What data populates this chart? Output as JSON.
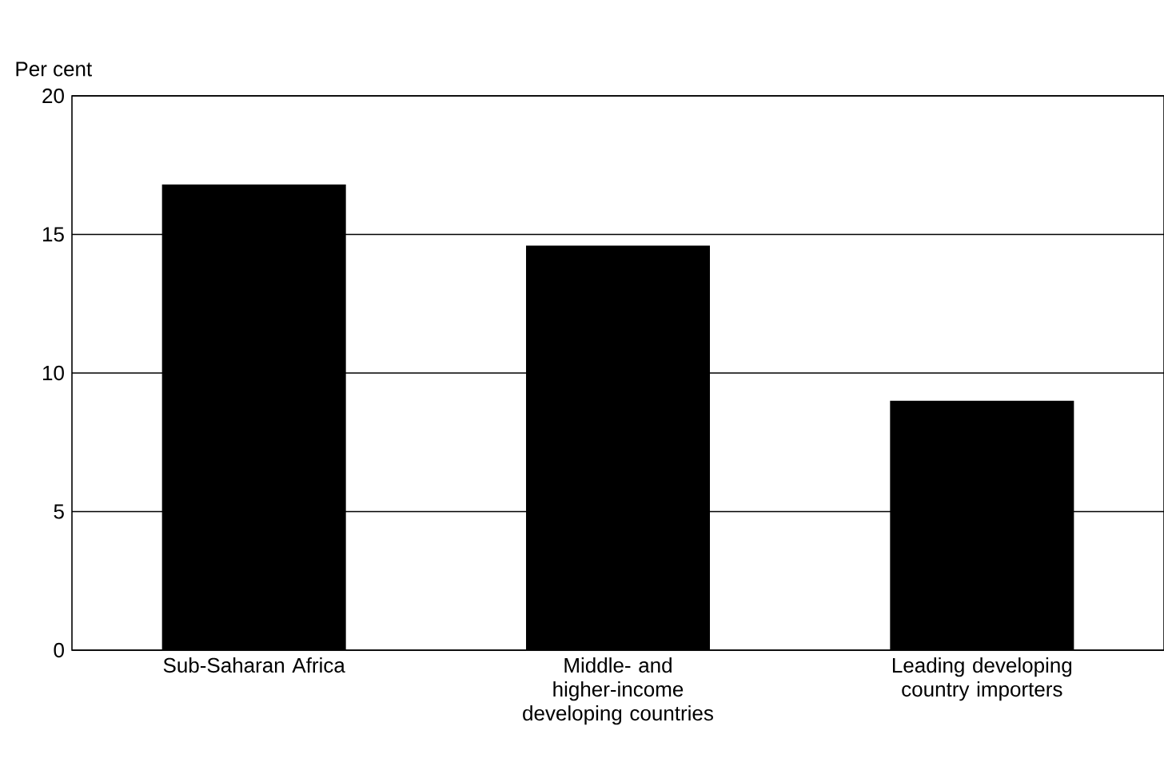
{
  "chart_data": {
    "type": "bar",
    "ylabel": "Per cent",
    "categories": [
      "Sub-Saharan Africa",
      "Middle- and higher-income developing countries",
      "Leading developing country importers"
    ],
    "values": [
      16.8,
      14.6,
      9.0
    ],
    "color": "#000000",
    "ylim": [
      0,
      20
    ],
    "yticks": [
      0,
      5,
      10,
      15,
      20
    ],
    "grid": "y"
  }
}
